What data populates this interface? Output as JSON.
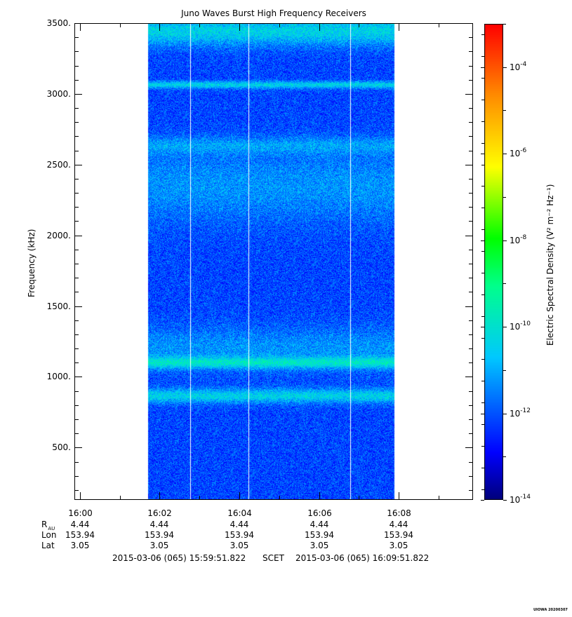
{
  "chart_data": {
    "type": "heatmap",
    "title": "Juno Waves Burst High Frequency Receivers",
    "ylabel": "Frequency (kHz)",
    "ylim": [
      130,
      3500
    ],
    "yticks": [
      "500.",
      "1000.",
      "1500.",
      "2000.",
      "2500.",
      "3000.",
      "3500."
    ],
    "ytick_values": [
      500,
      1000,
      1500,
      2000,
      2500,
      3000,
      3500
    ],
    "x_range": [
      "15:59:51.822",
      "16:09:51.822"
    ],
    "xticks": [
      "16:00",
      "16:02",
      "16:04",
      "16:06",
      "16:08"
    ],
    "xtick_minutes": [
      0.136,
      2.136,
      4.136,
      6.136,
      8.136
    ],
    "data_time_range_minutes": [
      1.82,
      8.0
    ],
    "gaps_minutes": [
      2.88,
      4.35,
      6.9
    ],
    "emission_bands_khz": [
      {
        "center": 3070,
        "width": 25,
        "level": "high"
      },
      {
        "center": 2640,
        "width": 60,
        "level": "medium"
      },
      {
        "center": 2350,
        "width": 250,
        "level": "medium"
      },
      {
        "center": 1100,
        "width": 40,
        "level": "high"
      },
      {
        "center": 865,
        "width": 50,
        "level": "high"
      },
      {
        "center": 1200,
        "width": 150,
        "level": "medium"
      },
      {
        "center": 3450,
        "width": 100,
        "level": "high"
      }
    ],
    "colorbar": {
      "label": "Electric Spectral Density (V² m⁻² Hz⁻¹)",
      "scale": "log",
      "range": [
        1e-14,
        0.001
      ],
      "ticks": [
        {
          "base": "10",
          "exp": "-14"
        },
        {
          "base": "10",
          "exp": "-12"
        },
        {
          "base": "10",
          "exp": "-10"
        },
        {
          "base": "10",
          "exp": "-8"
        },
        {
          "base": "10",
          "exp": "-6"
        },
        {
          "base": "10",
          "exp": "-4"
        }
      ],
      "tick_exponents": [
        -14,
        -12,
        -10,
        -8,
        -6,
        -4
      ]
    }
  },
  "ephemeris": {
    "rows": [
      {
        "label": "R",
        "sub": "AU",
        "values": [
          "4.44",
          "4.44",
          "4.44",
          "4.44",
          "4.44"
        ]
      },
      {
        "label": "Lon",
        "sub": "",
        "values": [
          "153.94",
          "153.94",
          "153.94",
          "153.94",
          "153.94"
        ]
      },
      {
        "label": "Lat",
        "sub": "",
        "values": [
          "3.05",
          "3.05",
          "3.05",
          "3.05",
          "3.05"
        ]
      }
    ]
  },
  "footer": {
    "start": "2015-03-06 (065) 15:59:51.822",
    "mid": "SCET",
    "end": "2015-03-06 (065) 16:09:51.822"
  },
  "stamp": "UIOWA 20200307"
}
